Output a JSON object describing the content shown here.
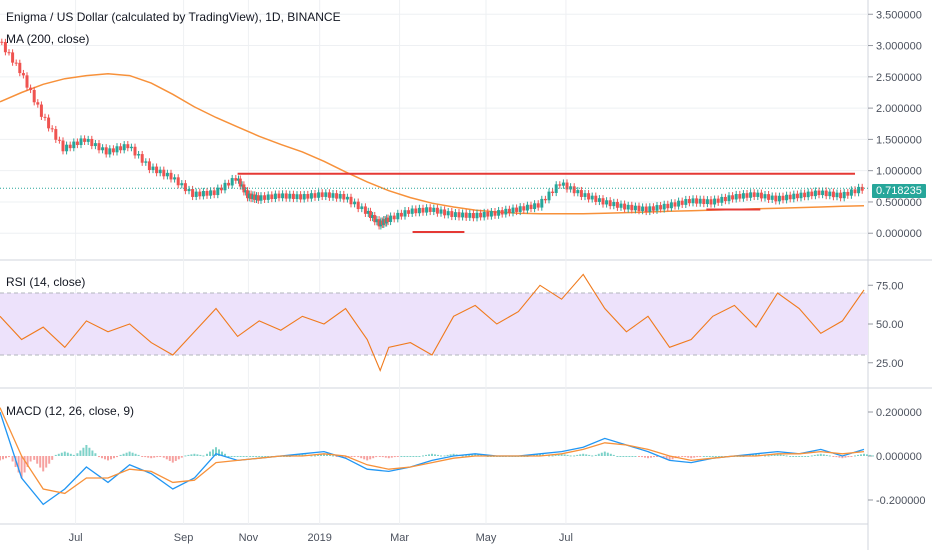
{
  "header": {
    "title": "Enigma / US Dollar (calculated by TradingView), 1D, BINANCE",
    "ma_label": "MA (200, close)"
  },
  "panes": {
    "rsi_label": "RSI (14, close)",
    "macd_label": "MACD (12, 26, close, 9)"
  },
  "last_price": "0.718235",
  "colors": {
    "up": "#26a69a",
    "down": "#ef5350",
    "ma": "#f7913a",
    "rsi_line": "#f07a1c",
    "rsi_band": "#ede2fb",
    "macd": "#2196f3",
    "signal": "#f7913a",
    "hline": "#e53935",
    "grid": "#eef0f3",
    "axis_text": "#4c525e"
  },
  "chart_data": [
    {
      "type": "line",
      "title": "Enigma / US Dollar (calculated by TradingView), 1D, BINANCE",
      "x_ticks": [
        "Jul",
        "Sep",
        "Nov",
        "2019",
        "Mar",
        "May",
        "Jul"
      ],
      "y_ticks": [
        "3.500000",
        "3.000000",
        "2.500000",
        "2.000000",
        "1.500000",
        "1.000000",
        "0.500000",
        "0.000000"
      ],
      "ylim": [
        -0.3,
        3.6
      ],
      "series": [
        {
          "name": "MA (200, close)",
          "x": [
            0,
            10,
            20,
            30,
            40,
            50,
            60,
            70,
            80,
            90,
            100,
            110,
            120,
            130,
            140,
            150,
            160,
            170,
            180,
            190,
            200,
            210,
            220,
            230,
            240,
            250,
            260,
            270,
            280,
            290,
            300,
            310,
            320,
            330,
            340,
            350,
            360,
            370,
            380,
            390,
            400
          ],
          "values": [
            2.1,
            2.25,
            2.38,
            2.47,
            2.52,
            2.55,
            2.52,
            2.4,
            2.22,
            2.02,
            1.85,
            1.7,
            1.55,
            1.42,
            1.3,
            1.15,
            0.98,
            0.82,
            0.68,
            0.57,
            0.48,
            0.42,
            0.37,
            0.34,
            0.32,
            0.31,
            0.31,
            0.31,
            0.32,
            0.33,
            0.34,
            0.35,
            0.36,
            0.37,
            0.38,
            0.39,
            0.4,
            0.41,
            0.42,
            0.43,
            0.44
          ]
        },
        {
          "name": "Price",
          "x": [
            0,
            10,
            20,
            30,
            40,
            50,
            60,
            70,
            80,
            90,
            100,
            110,
            115,
            120,
            130,
            140,
            150,
            160,
            170,
            176,
            180,
            190,
            200,
            210,
            220,
            230,
            240,
            250,
            260,
            270,
            280,
            290,
            300,
            310,
            320,
            330,
            340,
            350,
            360,
            370,
            380,
            390,
            400
          ],
          "values": [
            3.1,
            2.6,
            1.9,
            1.35,
            1.5,
            1.3,
            1.4,
            1.05,
            0.9,
            0.62,
            0.65,
            0.88,
            0.6,
            0.56,
            0.6,
            0.58,
            0.62,
            0.58,
            0.35,
            0.15,
            0.22,
            0.35,
            0.38,
            0.3,
            0.28,
            0.32,
            0.38,
            0.45,
            0.8,
            0.62,
            0.5,
            0.42,
            0.38,
            0.44,
            0.52,
            0.5,
            0.58,
            0.62,
            0.55,
            0.6,
            0.65,
            0.6,
            0.72
          ]
        }
      ],
      "horizontal_lines": [
        {
          "name": "resistance",
          "value": 0.95
        },
        {
          "name": "support-1",
          "value": 0.38
        },
        {
          "name": "support-2",
          "value": 0.02
        }
      ]
    },
    {
      "type": "line",
      "title": "RSI (14, close)",
      "y_ticks": [
        "75.00",
        "50.00",
        "25.00"
      ],
      "ylim": [
        10,
        90
      ],
      "band": [
        30,
        70
      ],
      "series": [
        {
          "name": "RSI",
          "x": [
            0,
            10,
            20,
            30,
            40,
            50,
            60,
            70,
            80,
            90,
            100,
            110,
            120,
            130,
            140,
            150,
            160,
            170,
            176,
            180,
            190,
            200,
            210,
            220,
            230,
            240,
            250,
            260,
            270,
            280,
            290,
            300,
            310,
            320,
            330,
            340,
            350,
            360,
            370,
            380,
            390,
            400
          ],
          "values": [
            55,
            40,
            48,
            35,
            52,
            45,
            50,
            38,
            30,
            45,
            60,
            42,
            52,
            46,
            55,
            50,
            60,
            40,
            20,
            35,
            38,
            30,
            55,
            62,
            50,
            58,
            75,
            66,
            82,
            60,
            45,
            55,
            35,
            40,
            55,
            62,
            48,
            70,
            60,
            44,
            52,
            72
          ]
        }
      ]
    },
    {
      "type": "line",
      "title": "MACD (12, 26, close, 9)",
      "y_ticks": [
        "0.200000",
        "0.000000",
        "-0.200000"
      ],
      "ylim": [
        -0.3,
        0.3
      ],
      "series": [
        {
          "name": "MACD",
          "x": [
            0,
            10,
            20,
            30,
            40,
            50,
            60,
            70,
            80,
            90,
            100,
            110,
            120,
            130,
            140,
            150,
            160,
            170,
            180,
            190,
            200,
            210,
            220,
            230,
            240,
            250,
            260,
            270,
            280,
            290,
            300,
            310,
            320,
            330,
            340,
            350,
            360,
            370,
            380,
            390,
            400
          ],
          "values": [
            0.2,
            -0.1,
            -0.22,
            -0.15,
            -0.05,
            -0.12,
            -0.04,
            -0.08,
            -0.15,
            -0.1,
            0.01,
            -0.02,
            -0.01,
            0.0,
            0.01,
            0.02,
            -0.01,
            -0.06,
            -0.07,
            -0.05,
            -0.02,
            0.0,
            0.01,
            0.0,
            0.0,
            0.01,
            0.02,
            0.04,
            0.08,
            0.05,
            0.02,
            -0.02,
            -0.03,
            -0.01,
            0.0,
            0.01,
            0.02,
            0.01,
            0.03,
            0.0,
            0.03
          ]
        },
        {
          "name": "Signal",
          "x": [
            0,
            10,
            20,
            30,
            40,
            50,
            60,
            70,
            80,
            90,
            100,
            110,
            120,
            130,
            140,
            150,
            160,
            170,
            180,
            190,
            200,
            210,
            220,
            230,
            240,
            250,
            260,
            270,
            280,
            290,
            300,
            310,
            320,
            330,
            340,
            350,
            360,
            370,
            380,
            390,
            400
          ],
          "values": [
            0.22,
            0.0,
            -0.15,
            -0.17,
            -0.1,
            -0.1,
            -0.06,
            -0.07,
            -0.12,
            -0.11,
            -0.03,
            -0.02,
            -0.01,
            0.0,
            0.0,
            0.01,
            0.0,
            -0.04,
            -0.06,
            -0.05,
            -0.03,
            -0.01,
            0.0,
            0.0,
            0.0,
            0.0,
            0.01,
            0.03,
            0.06,
            0.05,
            0.03,
            0.0,
            -0.02,
            -0.01,
            0.0,
            0.0,
            0.01,
            0.01,
            0.02,
            0.01,
            0.02
          ]
        }
      ]
    }
  ]
}
